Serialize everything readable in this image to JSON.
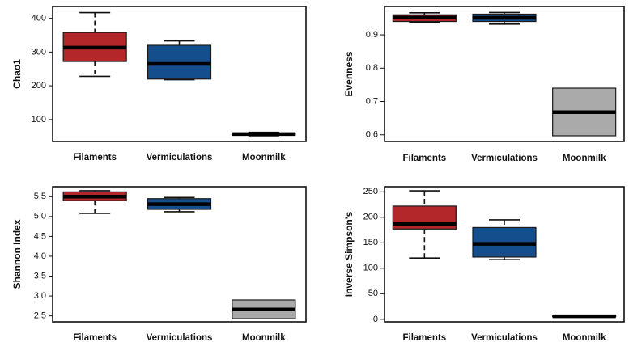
{
  "colors": {
    "Filaments": "#b3272a",
    "Vermiculations": "#154e8c",
    "Moonmilk": "#aaaaaa",
    "whisker": "#111111",
    "median": "#000000"
  },
  "chart_data": [
    {
      "type": "box",
      "ylabel": "Chao1",
      "categories": [
        "Filaments",
        "Vermiculations",
        "Moonmilk"
      ],
      "ylim": [
        35,
        435
      ],
      "yticks": [
        100,
        200,
        300,
        400
      ],
      "ytick_labels": [
        "100",
        "200",
        "300",
        "400"
      ],
      "boxes": [
        {
          "category": "Filaments",
          "whisker_low": 228,
          "q1": 272,
          "median": 313,
          "q3": 358,
          "whisker_high": 417
        },
        {
          "category": "Vermiculations",
          "whisker_low": 218,
          "q1": 220,
          "median": 265,
          "q3": 320,
          "whisker_high": 333
        },
        {
          "category": "Moonmilk",
          "whisker_low": 52,
          "q1": 54,
          "median": 57,
          "q3": 60,
          "whisker_high": 62
        }
      ]
    },
    {
      "type": "box",
      "ylabel": "Evenness",
      "categories": [
        "Filaments",
        "Vermiculations",
        "Moonmilk"
      ],
      "ylim": [
        0.58,
        0.985
      ],
      "yticks": [
        0.6,
        0.7,
        0.8,
        0.9
      ],
      "ytick_labels": [
        "0.6",
        "0.7",
        "0.8",
        "0.9"
      ],
      "boxes": [
        {
          "category": "Filaments",
          "whisker_low": 0.937,
          "q1": 0.94,
          "median": 0.952,
          "q3": 0.96,
          "whisker_high": 0.966
        },
        {
          "category": "Vermiculations",
          "whisker_low": 0.932,
          "q1": 0.94,
          "median": 0.951,
          "q3": 0.962,
          "whisker_high": 0.967
        },
        {
          "category": "Moonmilk",
          "whisker_low": 0.597,
          "q1": 0.597,
          "median": 0.668,
          "q3": 0.74,
          "whisker_high": 0.74
        }
      ]
    },
    {
      "type": "box",
      "ylabel": "Shannon Index",
      "categories": [
        "Filaments",
        "Vermiculations",
        "Moonmilk"
      ],
      "ylim": [
        2.35,
        5.75
      ],
      "yticks": [
        2.5,
        3.0,
        3.5,
        4.0,
        4.5,
        5.0,
        5.5
      ],
      "ytick_labels": [
        "2.5",
        "3.0",
        "3.5",
        "4.0",
        "4.5",
        "5.0",
        "5.5"
      ],
      "boxes": [
        {
          "category": "Filaments",
          "whisker_low": 5.08,
          "q1": 5.4,
          "median": 5.5,
          "q3": 5.62,
          "whisker_high": 5.65
        },
        {
          "category": "Vermiculations",
          "whisker_low": 5.12,
          "q1": 5.18,
          "median": 5.31,
          "q3": 5.45,
          "whisker_high": 5.48
        },
        {
          "category": "Moonmilk",
          "whisker_low": 2.43,
          "q1": 2.43,
          "median": 2.66,
          "q3": 2.9,
          "whisker_high": 2.9
        }
      ]
    },
    {
      "type": "box",
      "ylabel": "Inverse Simpson's",
      "categories": [
        "Filaments",
        "Vermiculations",
        "Moonmilk"
      ],
      "ylim": [
        -5,
        260
      ],
      "yticks": [
        0,
        50,
        100,
        150,
        200,
        250
      ],
      "ytick_labels": [
        "0",
        "50",
        "100",
        "150",
        "200",
        "250"
      ],
      "boxes": [
        {
          "category": "Filaments",
          "whisker_low": 120,
          "q1": 177,
          "median": 187,
          "q3": 222,
          "whisker_high": 252
        },
        {
          "category": "Vermiculations",
          "whisker_low": 117,
          "q1": 122,
          "median": 148,
          "q3": 180,
          "whisker_high": 195
        },
        {
          "category": "Moonmilk",
          "whisker_low": 5,
          "q1": 5,
          "median": 6,
          "q3": 7,
          "whisker_high": 8
        }
      ]
    }
  ]
}
